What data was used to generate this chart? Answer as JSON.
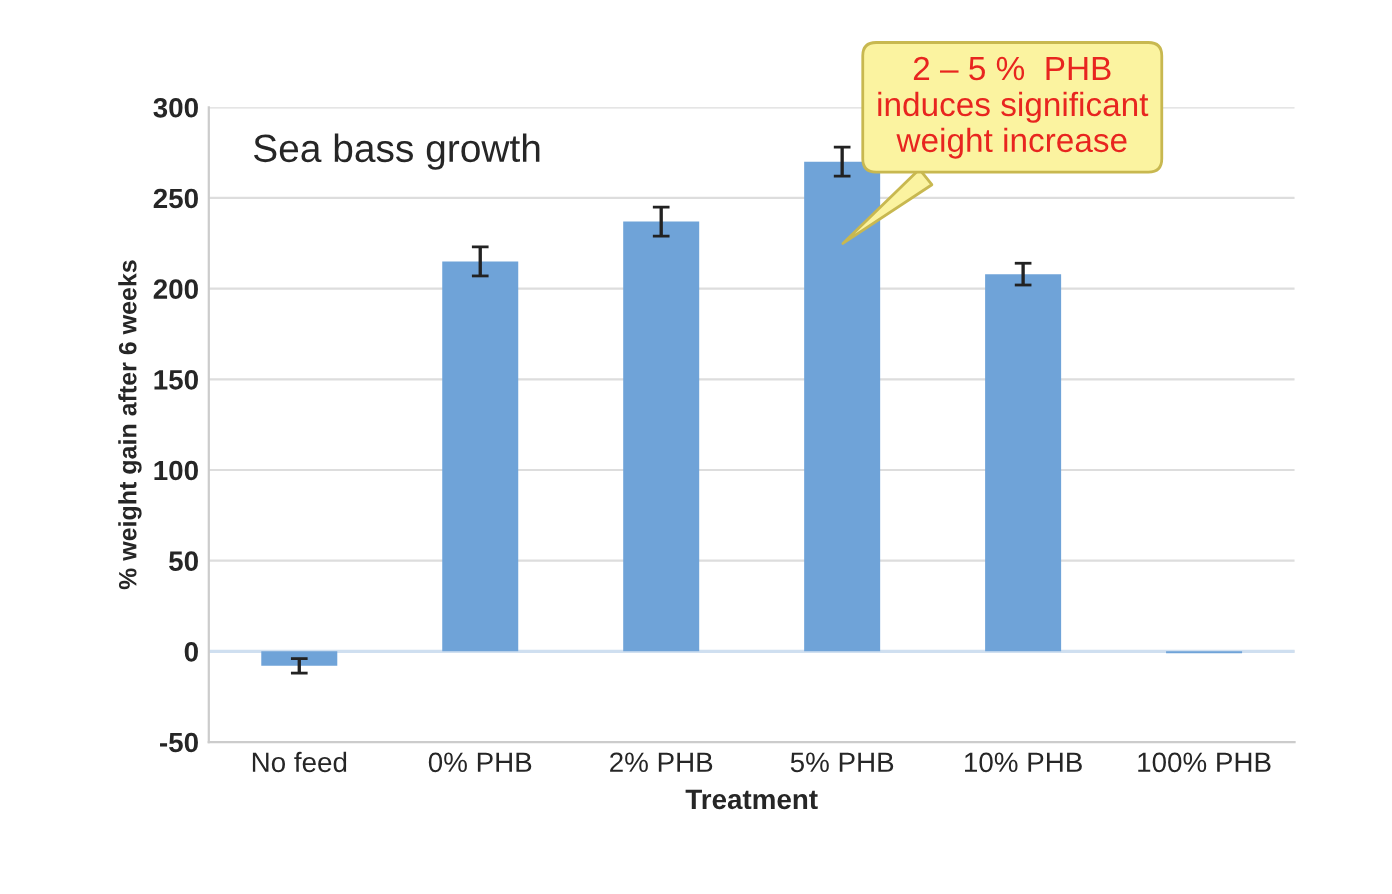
{
  "chart_data": {
    "type": "bar",
    "title": "Sea bass growth",
    "xlabel": "Treatment",
    "ylabel": "% weight gain after 6 weeks",
    "categories": [
      "No feed",
      "0% PHB",
      "2% PHB",
      "5% PHB",
      "10% PHB",
      "100% PHB"
    ],
    "values": [
      -8,
      215,
      237,
      270,
      208,
      -1
    ],
    "errors": [
      4,
      8,
      8,
      8,
      6,
      null
    ],
    "color": "#6fa3d8",
    "ylim": [
      -50,
      300
    ],
    "yticks": [
      -50,
      0,
      50,
      100,
      150,
      200,
      250,
      300
    ],
    "grid": "y",
    "annotations": [
      "2 – 5 %  PHB\ninduces significant\nweight increase"
    ]
  }
}
